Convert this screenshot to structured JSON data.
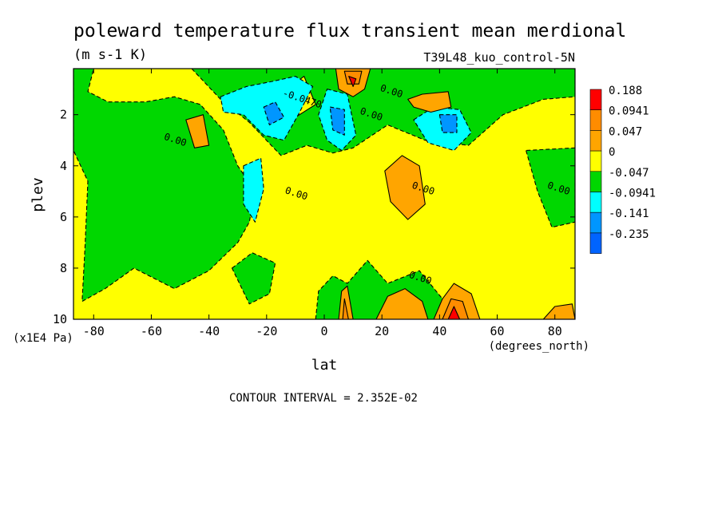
{
  "chart_data": {
    "type": "heatmap",
    "title": "poleward temperature flux transient mean merdional",
    "units_label": "(m s-1 K)",
    "run_label": "T39L48_kuo_control-5N",
    "xlabel": "lat",
    "x_units": "(degrees_north)",
    "ylabel": "plev",
    "y_units": "(x1E4 Pa)",
    "contour_interval_text": "CONTOUR INTERVAL = 2.352E-02",
    "xlim": [
      -87,
      87
    ],
    "ylim": [
      10,
      0.2
    ],
    "x_ticks": [
      {
        "value": -80,
        "label": "-80"
      },
      {
        "value": -60,
        "label": "-60"
      },
      {
        "value": -40,
        "label": "-40"
      },
      {
        "value": -20,
        "label": "-20"
      },
      {
        "value": 0,
        "label": "0"
      },
      {
        "value": 20,
        "label": "20"
      },
      {
        "value": 40,
        "label": "40"
      },
      {
        "value": 60,
        "label": "60"
      },
      {
        "value": 80,
        "label": "80"
      }
    ],
    "y_ticks": [
      {
        "value": 2,
        "label": "2"
      },
      {
        "value": 4,
        "label": "4"
      },
      {
        "value": 6,
        "label": "6"
      },
      {
        "value": 8,
        "label": "8"
      },
      {
        "value": 10,
        "label": "10"
      }
    ],
    "colorbar": {
      "levels": [
        "0.188",
        "0.0941",
        "0.047",
        "0",
        "-0.047",
        "-0.0941",
        "-0.141",
        "-0.235"
      ],
      "colors": [
        "#ff0000",
        "#ff8c00",
        "#ffa500",
        "#ffff00",
        "#00d700",
        "#00ffff",
        "#0096ff",
        "#0064ff"
      ]
    },
    "contour_labels": [
      {
        "text": "0.00",
        "x": -52,
        "y": 3.1
      },
      {
        "text": "0.00",
        "x": 23,
        "y": 1.2
      },
      {
        "text": "0.00",
        "x": 16,
        "y": 2.1
      },
      {
        "text": "-0.0470",
        "x": -8,
        "y": 1.5
      },
      {
        "text": "0.00",
        "x": -10,
        "y": 5.2
      },
      {
        "text": "0.00",
        "x": 34,
        "y": 5.0
      },
      {
        "text": "0.00",
        "x": 33,
        "y": 8.5
      },
      {
        "text": "0.00",
        "x": 81,
        "y": 5.0
      }
    ],
    "regions": [
      {
        "level": "0",
        "shape": "rect",
        "x": [
          -87,
          87
        ],
        "y": [
          0.2,
          10
        ]
      },
      {
        "level": "-0.047",
        "shape": "poly",
        "points": [
          [
            -87,
            0.2
          ],
          [
            -87,
            3.4
          ],
          [
            -82,
            4.6
          ],
          [
            -83,
            7.2
          ],
          [
            -84,
            9.3
          ],
          [
            -76,
            8.8
          ],
          [
            -66,
            8.0
          ],
          [
            -52,
            8.8
          ],
          [
            -40,
            8.1
          ],
          [
            -30,
            7.0
          ],
          [
            -26,
            6.2
          ],
          [
            -24,
            5.0
          ],
          [
            -30,
            4.0
          ],
          [
            -35,
            2.6
          ],
          [
            -43,
            1.6
          ],
          [
            -52,
            1.3
          ],
          [
            -62,
            1.5
          ],
          [
            -75,
            1.5
          ],
          [
            -82,
            1.1
          ],
          [
            -80,
            0.2
          ]
        ]
      },
      {
        "level": "-0.047",
        "shape": "poly",
        "points": [
          [
            -46,
            0.2
          ],
          [
            -36,
            1.4
          ],
          [
            -26,
            2.3
          ],
          [
            -15,
            3.6
          ],
          [
            -6,
            3.2
          ],
          [
            3,
            3.5
          ],
          [
            10,
            3.3
          ],
          [
            22,
            2.4
          ],
          [
            35,
            3.0
          ],
          [
            50,
            3.2
          ],
          [
            62,
            2.0
          ],
          [
            76,
            1.4
          ],
          [
            87,
            1.3
          ],
          [
            87,
            0.2
          ]
        ]
      },
      {
        "level": "-0.047",
        "shape": "poly",
        "points": [
          [
            70,
            3.4
          ],
          [
            74,
            5.0
          ],
          [
            79,
            6.4
          ],
          [
            87,
            6.2
          ],
          [
            87,
            3.3
          ]
        ]
      },
      {
        "level": "-0.047",
        "shape": "poly",
        "points": [
          [
            -3,
            10
          ],
          [
            -2,
            8.9
          ],
          [
            3,
            8.3
          ],
          [
            8,
            8.6
          ],
          [
            15,
            7.7
          ],
          [
            22,
            8.6
          ],
          [
            33,
            8.1
          ],
          [
            41,
            9.2
          ],
          [
            47,
            10
          ]
        ]
      },
      {
        "level": "-0.047",
        "shape": "poly",
        "points": [
          [
            -32,
            8.0
          ],
          [
            -25,
            7.4
          ],
          [
            -17,
            7.8
          ],
          [
            -19,
            9.0
          ],
          [
            -26,
            9.4
          ]
        ]
      },
      {
        "level": "0",
        "shape": "poly",
        "points": [
          [
            -14,
            1.1
          ],
          [
            -7,
            0.5
          ],
          [
            -3,
            1.6
          ],
          [
            -10,
            2.1
          ]
        ]
      },
      {
        "level": "-0.0941",
        "shape": "poly",
        "points": [
          [
            -36,
            1.3
          ],
          [
            -27,
            0.9
          ],
          [
            -18,
            0.7
          ],
          [
            -10,
            0.5
          ],
          [
            -4,
            0.9
          ],
          [
            -9,
            2.0
          ],
          [
            -14,
            3.0
          ],
          [
            -21,
            2.8
          ],
          [
            -28,
            2.0
          ],
          [
            -35,
            1.9
          ]
        ]
      },
      {
        "level": "-0.0941",
        "shape": "poly",
        "points": [
          [
            1,
            1.0
          ],
          [
            8,
            1.2
          ],
          [
            11,
            2.8
          ],
          [
            6,
            3.4
          ],
          [
            1,
            3.0
          ],
          [
            -2,
            2.0
          ]
        ]
      },
      {
        "level": "-0.0941",
        "shape": "poly",
        "points": [
          [
            31,
            2.2
          ],
          [
            38,
            1.7
          ],
          [
            47,
            1.8
          ],
          [
            51,
            2.7
          ],
          [
            45,
            3.4
          ],
          [
            36,
            3.1
          ]
        ]
      },
      {
        "level": "-0.0941",
        "shape": "poly",
        "points": [
          [
            -28,
            4.0
          ],
          [
            -22,
            3.7
          ],
          [
            -21,
            4.9
          ],
          [
            -24,
            6.2
          ],
          [
            -28,
            5.5
          ]
        ]
      },
      {
        "level": "-0.141",
        "shape": "poly",
        "points": [
          [
            -21,
            1.7
          ],
          [
            -17,
            1.5
          ],
          [
            -14,
            2.1
          ],
          [
            -19,
            2.4
          ]
        ]
      },
      {
        "level": "-0.141",
        "shape": "poly",
        "points": [
          [
            2,
            1.7
          ],
          [
            7,
            1.8
          ],
          [
            7,
            2.8
          ],
          [
            3,
            2.6
          ]
        ]
      },
      {
        "level": "-0.141",
        "shape": "poly",
        "points": [
          [
            40,
            2.0
          ],
          [
            46,
            2.0
          ],
          [
            46,
            2.7
          ],
          [
            41,
            2.7
          ]
        ]
      },
      {
        "level": "0.047",
        "shape": "poly",
        "points": [
          [
            -48,
            2.2
          ],
          [
            -42,
            2.0
          ],
          [
            -40,
            3.2
          ],
          [
            -45,
            3.3
          ]
        ]
      },
      {
        "level": "0.047",
        "shape": "poly",
        "points": [
          [
            21,
            4.2
          ],
          [
            27,
            3.6
          ],
          [
            33,
            4.0
          ],
          [
            35,
            5.5
          ],
          [
            29,
            6.1
          ],
          [
            23,
            5.4
          ]
        ]
      },
      {
        "level": "0.047",
        "shape": "poly",
        "points": [
          [
            4,
            0.2
          ],
          [
            16,
            0.2
          ],
          [
            14,
            1.0
          ],
          [
            10,
            1.3
          ],
          [
            5,
            1.0
          ]
        ]
      },
      {
        "level": "0.047",
        "shape": "poly",
        "points": [
          [
            29,
            1.4
          ],
          [
            34,
            1.2
          ],
          [
            43,
            1.1
          ],
          [
            44,
            1.7
          ],
          [
            37,
            1.9
          ],
          [
            31,
            1.7
          ]
        ]
      },
      {
        "level": "0.047",
        "shape": "poly",
        "points": [
          [
            18,
            10
          ],
          [
            22,
            9.1
          ],
          [
            28,
            8.8
          ],
          [
            34,
            9.3
          ],
          [
            36,
            10
          ]
        ]
      },
      {
        "level": "0.047",
        "shape": "poly",
        "points": [
          [
            38,
            10
          ],
          [
            41,
            9.2
          ],
          [
            45,
            8.6
          ],
          [
            51,
            9.0
          ],
          [
            54,
            10
          ]
        ]
      },
      {
        "level": "0.047",
        "shape": "poly",
        "points": [
          [
            76,
            10
          ],
          [
            80,
            9.5
          ],
          [
            86,
            9.4
          ],
          [
            87,
            10
          ]
        ]
      },
      {
        "level": "0.047",
        "shape": "poly",
        "points": [
          [
            5,
            10
          ],
          [
            6,
            8.9
          ],
          [
            8,
            8.7
          ],
          [
            10,
            10
          ]
        ]
      },
      {
        "level": "0.0941",
        "shape": "poly",
        "points": [
          [
            7,
            0.3
          ],
          [
            13,
            0.3
          ],
          [
            12,
            0.8
          ],
          [
            8,
            0.8
          ]
        ]
      },
      {
        "level": "0.0941",
        "shape": "poly",
        "points": [
          [
            41,
            10
          ],
          [
            44,
            9.2
          ],
          [
            48,
            9.3
          ],
          [
            50,
            10
          ]
        ]
      },
      {
        "level": "0.0941",
        "shape": "poly",
        "points": [
          [
            6.4,
            10
          ],
          [
            7,
            9.2
          ],
          [
            8.4,
            10
          ]
        ]
      },
      {
        "level": "0.188",
        "shape": "poly",
        "points": [
          [
            8.5,
            0.5
          ],
          [
            11,
            0.6
          ],
          [
            10,
            0.9
          ]
        ]
      },
      {
        "level": "0.188",
        "shape": "poly",
        "points": [
          [
            43,
            10
          ],
          [
            45,
            9.5
          ],
          [
            47,
            10
          ]
        ]
      }
    ]
  }
}
